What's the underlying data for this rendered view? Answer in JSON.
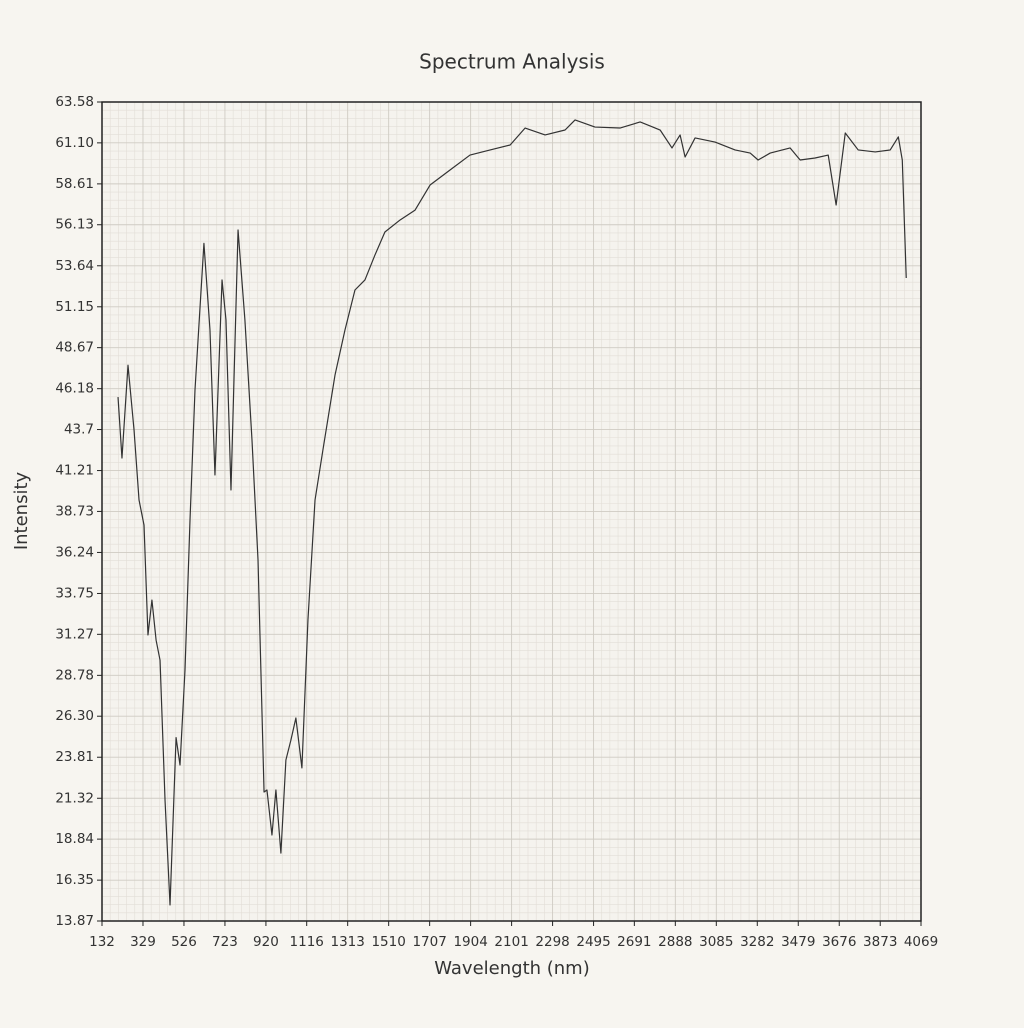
{
  "chart_data": {
    "type": "line",
    "title": "Spectrum Analysis",
    "x_label": "Wavelength (nm)",
    "y_label": "Intensity",
    "grid": true,
    "minor_grid": true,
    "xlim": [
      132,
      4069
    ],
    "ylim": [
      13.87,
      63.58
    ],
    "xticks": [
      132,
      329,
      526,
      723,
      920,
      1116,
      1313,
      1510,
      1707,
      1904,
      2101,
      2298,
      2495,
      2691,
      2888,
      3085,
      3282,
      3479,
      3676,
      3873,
      4069
    ],
    "yticks": [
      13.87,
      16.35,
      18.84,
      21.32,
      23.81,
      {
        "value": 26.3,
        "label": "26.30"
      },
      28.78,
      31.27,
      33.75,
      36.24,
      38.73,
      41.21,
      43.7,
      46.18,
      48.67,
      51.15,
      53.64,
      56.13,
      58.61,
      {
        "value": 61.1,
        "label": "61.10"
      },
      63.58
    ],
    "series": [
      {
        "color": "#333333",
        "x": [
          209,
          228,
          257,
          286,
          310,
          334,
          353,
          372,
          392,
          411,
          435,
          459,
          488,
          507,
          531,
          555,
          579,
          622,
          651,
          675,
          709,
          728,
          752,
          786,
          819,
          853,
          882,
          911,
          925,
          949,
          968,
          992,
          1016,
          1040,
          1064,
          1093,
          1122,
          1156,
          1194,
          1252,
          1300,
          1348,
          1396,
          1444,
          1492,
          1565,
          1637,
          1709,
          1805,
          1901,
          1998,
          2094,
          2166,
          2262,
          2358,
          2406,
          2502,
          2622,
          2719,
          2815,
          2872,
          2911,
          2935,
          2983,
          3079,
          3175,
          3248,
          3286,
          3344,
          3440,
          3488,
          3560,
          3623,
          3661,
          3705,
          3767,
          3849,
          3921,
          3960,
          3979,
          3998
        ],
        "values": [
          45.67,
          41.97,
          47.6,
          43.67,
          39.42,
          37.9,
          31.23,
          33.35,
          30.92,
          29.7,
          21.2,
          14.84,
          25.0,
          23.34,
          29.1,
          38.2,
          46.1,
          55.0,
          49.75,
          40.94,
          52.78,
          50.35,
          40.03,
          55.81,
          50.35,
          43.06,
          35.78,
          21.7,
          21.82,
          19.09,
          21.82,
          17.99,
          23.64,
          24.85,
          26.19,
          23.16,
          32.14,
          39.42,
          42.46,
          47.0,
          49.74,
          52.17,
          52.78,
          54.29,
          55.69,
          56.42,
          57.02,
          58.54,
          59.45,
          60.36,
          60.67,
          60.97,
          62.0,
          61.58,
          61.88,
          62.49,
          62.06,
          62.0,
          62.37,
          61.88,
          60.79,
          61.58,
          60.24,
          61.4,
          61.15,
          60.67,
          60.48,
          60.06,
          60.48,
          60.79,
          60.06,
          60.18,
          60.36,
          57.33,
          61.7,
          60.67,
          60.55,
          60.67,
          61.46,
          60.06,
          52.9
        ]
      }
    ]
  }
}
